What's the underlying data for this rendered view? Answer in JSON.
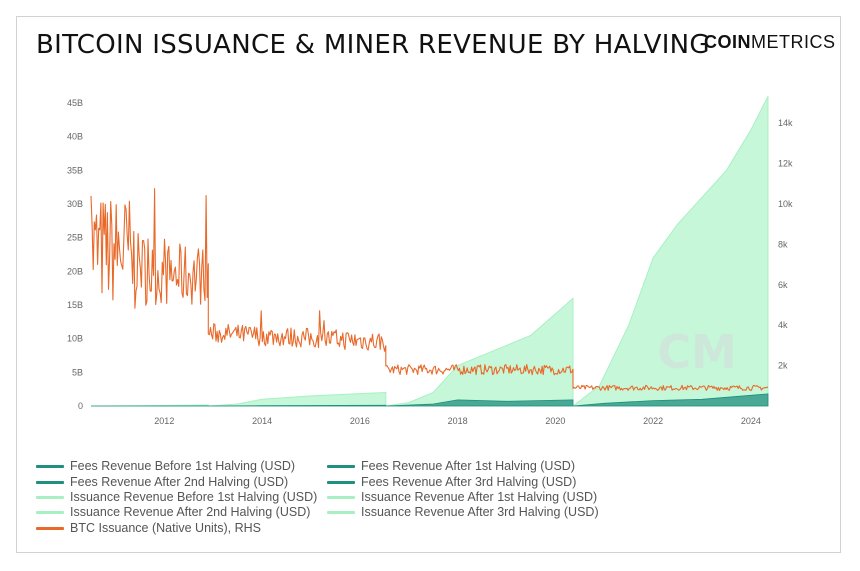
{
  "header": {
    "title": "BITCOIN ISSUANCE & MINER REVENUE BY HALVING",
    "brand_bold": "COIN",
    "brand_light": "METRICS",
    "watermark": "CM"
  },
  "colors": {
    "fees_teal": "#1f8f7f",
    "issuance_green": "#a8f0c4",
    "issuance_fill": "#c6f7d8",
    "btc_orange": "#e8692a"
  },
  "chart_data": {
    "type": "area",
    "x_ticks": [
      "2012",
      "2014",
      "2016",
      "2018",
      "2020",
      "2022",
      "2024"
    ],
    "y_left_ticks": [
      "0",
      "5B",
      "10B",
      "15B",
      "20B",
      "25B",
      "30B",
      "35B",
      "40B",
      "45B"
    ],
    "y_left_range": [
      0,
      45000000000
    ],
    "y_right_ticks": [
      "2k",
      "4k",
      "6k",
      "8k",
      "10k",
      "12k",
      "14k"
    ],
    "y_right_range": [
      0,
      15000
    ],
    "x_range": [
      2010.5,
      2024.35
    ],
    "halvings": [
      2012.9,
      2016.53,
      2020.36
    ],
    "series": [
      {
        "name": "Fees Revenue Before 1st Halving (USD)",
        "color": "#1f8f7f",
        "points": [
          [
            2010.5,
            0
          ],
          [
            2012.9,
            0.02
          ]
        ]
      },
      {
        "name": "Fees Revenue After 1st Halving (USD)",
        "color": "#1f8f7f",
        "points": [
          [
            2012.9,
            0
          ],
          [
            2014,
            0.05
          ],
          [
            2016.53,
            0.1
          ]
        ]
      },
      {
        "name": "Fees Revenue After 2nd Halving (USD)",
        "color": "#1f8f7f",
        "points": [
          [
            2016.53,
            0
          ],
          [
            2017.5,
            0.3
          ],
          [
            2018,
            0.9
          ],
          [
            2019,
            0.7
          ],
          [
            2020.36,
            0.9
          ]
        ]
      },
      {
        "name": "Fees Revenue After 3rd Halving (USD)",
        "color": "#1f8f7f",
        "points": [
          [
            2020.36,
            0
          ],
          [
            2021,
            0.4
          ],
          [
            2022,
            0.8
          ],
          [
            2023,
            1.0
          ],
          [
            2024.35,
            1.8
          ]
        ]
      },
      {
        "name": "Issuance Revenue Before 1st Halving (USD)",
        "color": "#a8f0c4",
        "points": [
          [
            2010.5,
            0
          ],
          [
            2011.5,
            0.05
          ],
          [
            2012.9,
            0.15
          ]
        ]
      },
      {
        "name": "Issuance Revenue After 1st Halving (USD)",
        "color": "#a8f0c4",
        "points": [
          [
            2012.9,
            0
          ],
          [
            2013.5,
            0.3
          ],
          [
            2014,
            1.0
          ],
          [
            2015,
            1.5
          ],
          [
            2016.53,
            2.0
          ]
        ]
      },
      {
        "name": "Issuance Revenue After 2nd Halving (USD)",
        "color": "#a8f0c4",
        "points": [
          [
            2016.53,
            0
          ],
          [
            2017,
            0.5
          ],
          [
            2017.5,
            2.0
          ],
          [
            2018,
            6.0
          ],
          [
            2019,
            9.0
          ],
          [
            2019.5,
            10.5
          ],
          [
            2020.36,
            16.0
          ]
        ]
      },
      {
        "name": "Issuance Revenue After 3rd Halving (USD)",
        "color": "#a8f0c4",
        "points": [
          [
            2020.36,
            0
          ],
          [
            2020.9,
            3.0
          ],
          [
            2021.5,
            12.0
          ],
          [
            2022,
            22.0
          ],
          [
            2022.5,
            27.0
          ],
          [
            2023,
            31.0
          ],
          [
            2023.5,
            35.0
          ],
          [
            2024,
            41.0
          ],
          [
            2024.35,
            46.0
          ]
        ]
      },
      {
        "name": "BTC Issuance (Native Units), RHS",
        "color": "#e8692a",
        "axis": "right",
        "levels": [
          [
            2010.5,
            2012.9,
            7000
          ],
          [
            2012.9,
            2016.53,
            3600
          ],
          [
            2016.53,
            2020.36,
            1800
          ],
          [
            2020.36,
            2024.35,
            900
          ]
        ]
      }
    ],
    "legend": [
      "Fees Revenue Before 1st Halving (USD)",
      "Fees Revenue After 1st Halving (USD)",
      "Fees Revenue After 2nd Halving (USD)",
      "Fees Revenue After 3rd Halving (USD)",
      "Issuance Revenue Before 1st Halving (USD)",
      "Issuance Revenue After 1st Halving (USD)",
      "Issuance Revenue After 2nd Halving (USD)",
      "Issuance Revenue After 3rd Halving (USD)",
      "BTC Issuance (Native Units), RHS"
    ],
    "grid": false,
    "legend_placement": "bottom-left"
  }
}
